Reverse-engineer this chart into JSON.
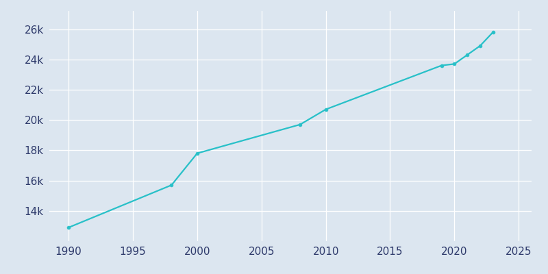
{
  "years": [
    1990,
    1998,
    2000,
    2008,
    2010,
    2019,
    2020,
    2021,
    2022,
    2023
  ],
  "population": [
    12900,
    15700,
    17800,
    19700,
    20700,
    23600,
    23700,
    24300,
    24900,
    25800
  ],
  "line_color": "#28c0c8",
  "marker_color": "#28c0c8",
  "bg_color": "#dce6f0",
  "plot_bg_color": "#dce6f0",
  "grid_color": "#ffffff",
  "tick_label_color": "#2e3a6b",
  "xlim": [
    1988.5,
    2026
  ],
  "ylim": [
    12000,
    27200
  ],
  "xticks": [
    1990,
    1995,
    2000,
    2005,
    2010,
    2015,
    2020,
    2025
  ],
  "yticks": [
    14000,
    16000,
    18000,
    20000,
    22000,
    24000,
    26000
  ],
  "ytick_labels": [
    "14k",
    "16k",
    "18k",
    "20k",
    "22k",
    "24k",
    "26k"
  ]
}
